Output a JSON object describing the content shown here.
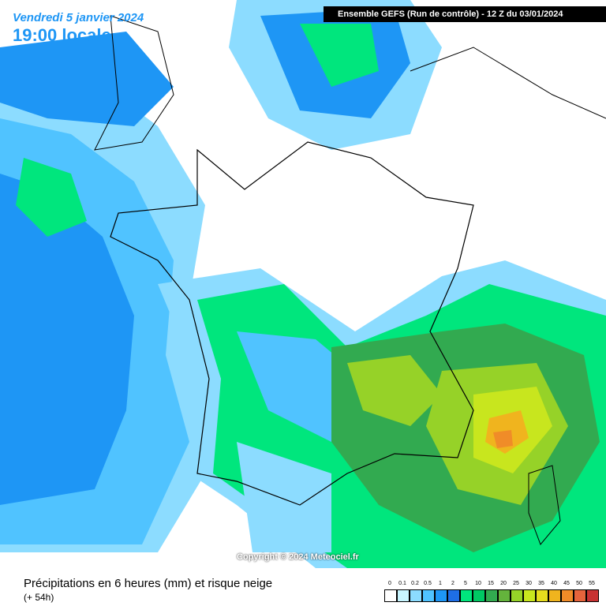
{
  "header": {
    "date": "Vendredi 5 janvier 2024",
    "time": "19:00 locale",
    "run": "Ensemble GEFS  (Run de contrôle)  -  12 Z du 03/01/2024"
  },
  "copyright": "Copyright © 2024 Meteociel.fr",
  "footer": {
    "title": "Précipitations en 6 heures (mm) et risque neige",
    "lead": "(+ 54h)"
  },
  "legend": {
    "values": [
      0,
      0.1,
      0.2,
      0.5,
      1,
      2,
      5,
      10,
      15,
      20,
      25,
      30,
      35,
      40,
      45,
      50,
      55
    ],
    "colors": [
      "#ffffff",
      "#c8f5ff",
      "#8cdcff",
      "#50c3ff",
      "#1e96f5",
      "#1e6ee6",
      "#00e67d",
      "#00c864",
      "#32aa50",
      "#64b43c",
      "#96d228",
      "#c8e61e",
      "#e6dc1e",
      "#f0b41e",
      "#f08c28",
      "#e6643c",
      "#c83232"
    ]
  }
}
